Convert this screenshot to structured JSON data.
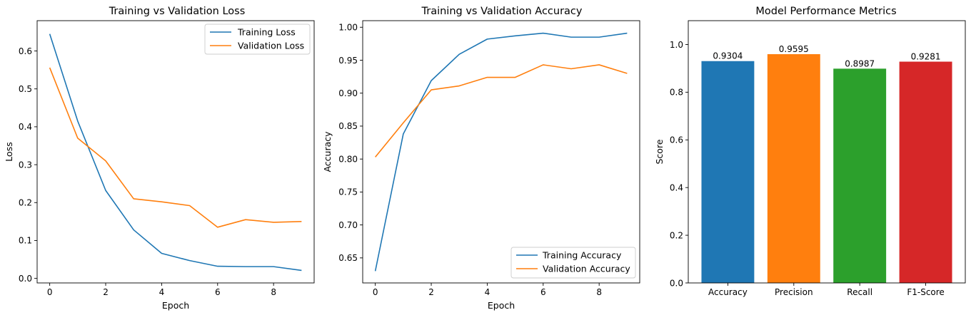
{
  "colors": {
    "blue": "#1f77b4",
    "orange": "#ff7f0e",
    "green": "#2ca02c",
    "red": "#d62728"
  },
  "chart_data": [
    {
      "type": "line",
      "title": "Training vs Validation Loss",
      "xlabel": "Epoch",
      "ylabel": "Loss",
      "x": [
        0,
        1,
        2,
        3,
        4,
        5,
        6,
        7,
        8,
        9
      ],
      "xlim": [
        -0.45,
        9.45
      ],
      "ylim": [
        -0.012,
        0.68
      ],
      "xticks": [
        0,
        2,
        4,
        6,
        8
      ],
      "yticks": [
        0.0,
        0.1,
        0.2,
        0.3,
        0.4,
        0.5,
        0.6
      ],
      "ytick_labels": [
        "0.0",
        "0.1",
        "0.2",
        "0.3",
        "0.4",
        "0.5",
        "0.6"
      ],
      "legend_position": "top-right",
      "series": [
        {
          "name": "Training Loss",
          "color": "#1f77b4",
          "values": [
            0.645,
            0.415,
            0.232,
            0.128,
            0.066,
            0.047,
            0.032,
            0.031,
            0.031,
            0.021
          ]
        },
        {
          "name": "Validation Loss",
          "color": "#ff7f0e",
          "values": [
            0.556,
            0.37,
            0.31,
            0.21,
            0.202,
            0.192,
            0.135,
            0.155,
            0.148,
            0.15
          ]
        }
      ]
    },
    {
      "type": "line",
      "title": "Training vs Validation Accuracy",
      "xlabel": "Epoch",
      "ylabel": "Accuracy",
      "x": [
        0,
        1,
        2,
        3,
        4,
        5,
        6,
        7,
        8,
        9
      ],
      "xlim": [
        -0.45,
        9.45
      ],
      "ylim": [
        0.612,
        1.01
      ],
      "xticks": [
        0,
        2,
        4,
        6,
        8
      ],
      "yticks": [
        0.65,
        0.7,
        0.75,
        0.8,
        0.85,
        0.9,
        0.95,
        1.0
      ],
      "ytick_labels": [
        "0.65",
        "0.70",
        "0.75",
        "0.80",
        "0.85",
        "0.90",
        "0.95",
        "1.00"
      ],
      "legend_position": "bottom-right",
      "series": [
        {
          "name": "Training Accuracy",
          "color": "#1f77b4",
          "values": [
            0.63,
            0.838,
            0.919,
            0.959,
            0.982,
            0.987,
            0.991,
            0.985,
            0.985,
            0.991
          ]
        },
        {
          "name": "Validation Accuracy",
          "color": "#ff7f0e",
          "values": [
            0.803,
            0.855,
            0.905,
            0.911,
            0.924,
            0.924,
            0.943,
            0.937,
            0.943,
            0.93
          ]
        }
      ]
    },
    {
      "type": "bar",
      "title": "Model Performance Metrics",
      "xlabel": "",
      "ylabel": "Score",
      "categories": [
        "Accuracy",
        "Precision",
        "Recall",
        "F1-Score"
      ],
      "values": [
        0.9304,
        0.9595,
        0.8987,
        0.9281
      ],
      "value_labels": [
        "0.9304",
        "0.9595",
        "0.8987",
        "0.9281"
      ],
      "bar_colors": [
        "#1f77b4",
        "#ff7f0e",
        "#2ca02c",
        "#d62728"
      ],
      "ylim": [
        0,
        1.1
      ],
      "yticks": [
        0.0,
        0.2,
        0.4,
        0.6,
        0.8,
        1.0
      ],
      "ytick_labels": [
        "0.0",
        "0.2",
        "0.4",
        "0.6",
        "0.8",
        "1.0"
      ]
    }
  ]
}
